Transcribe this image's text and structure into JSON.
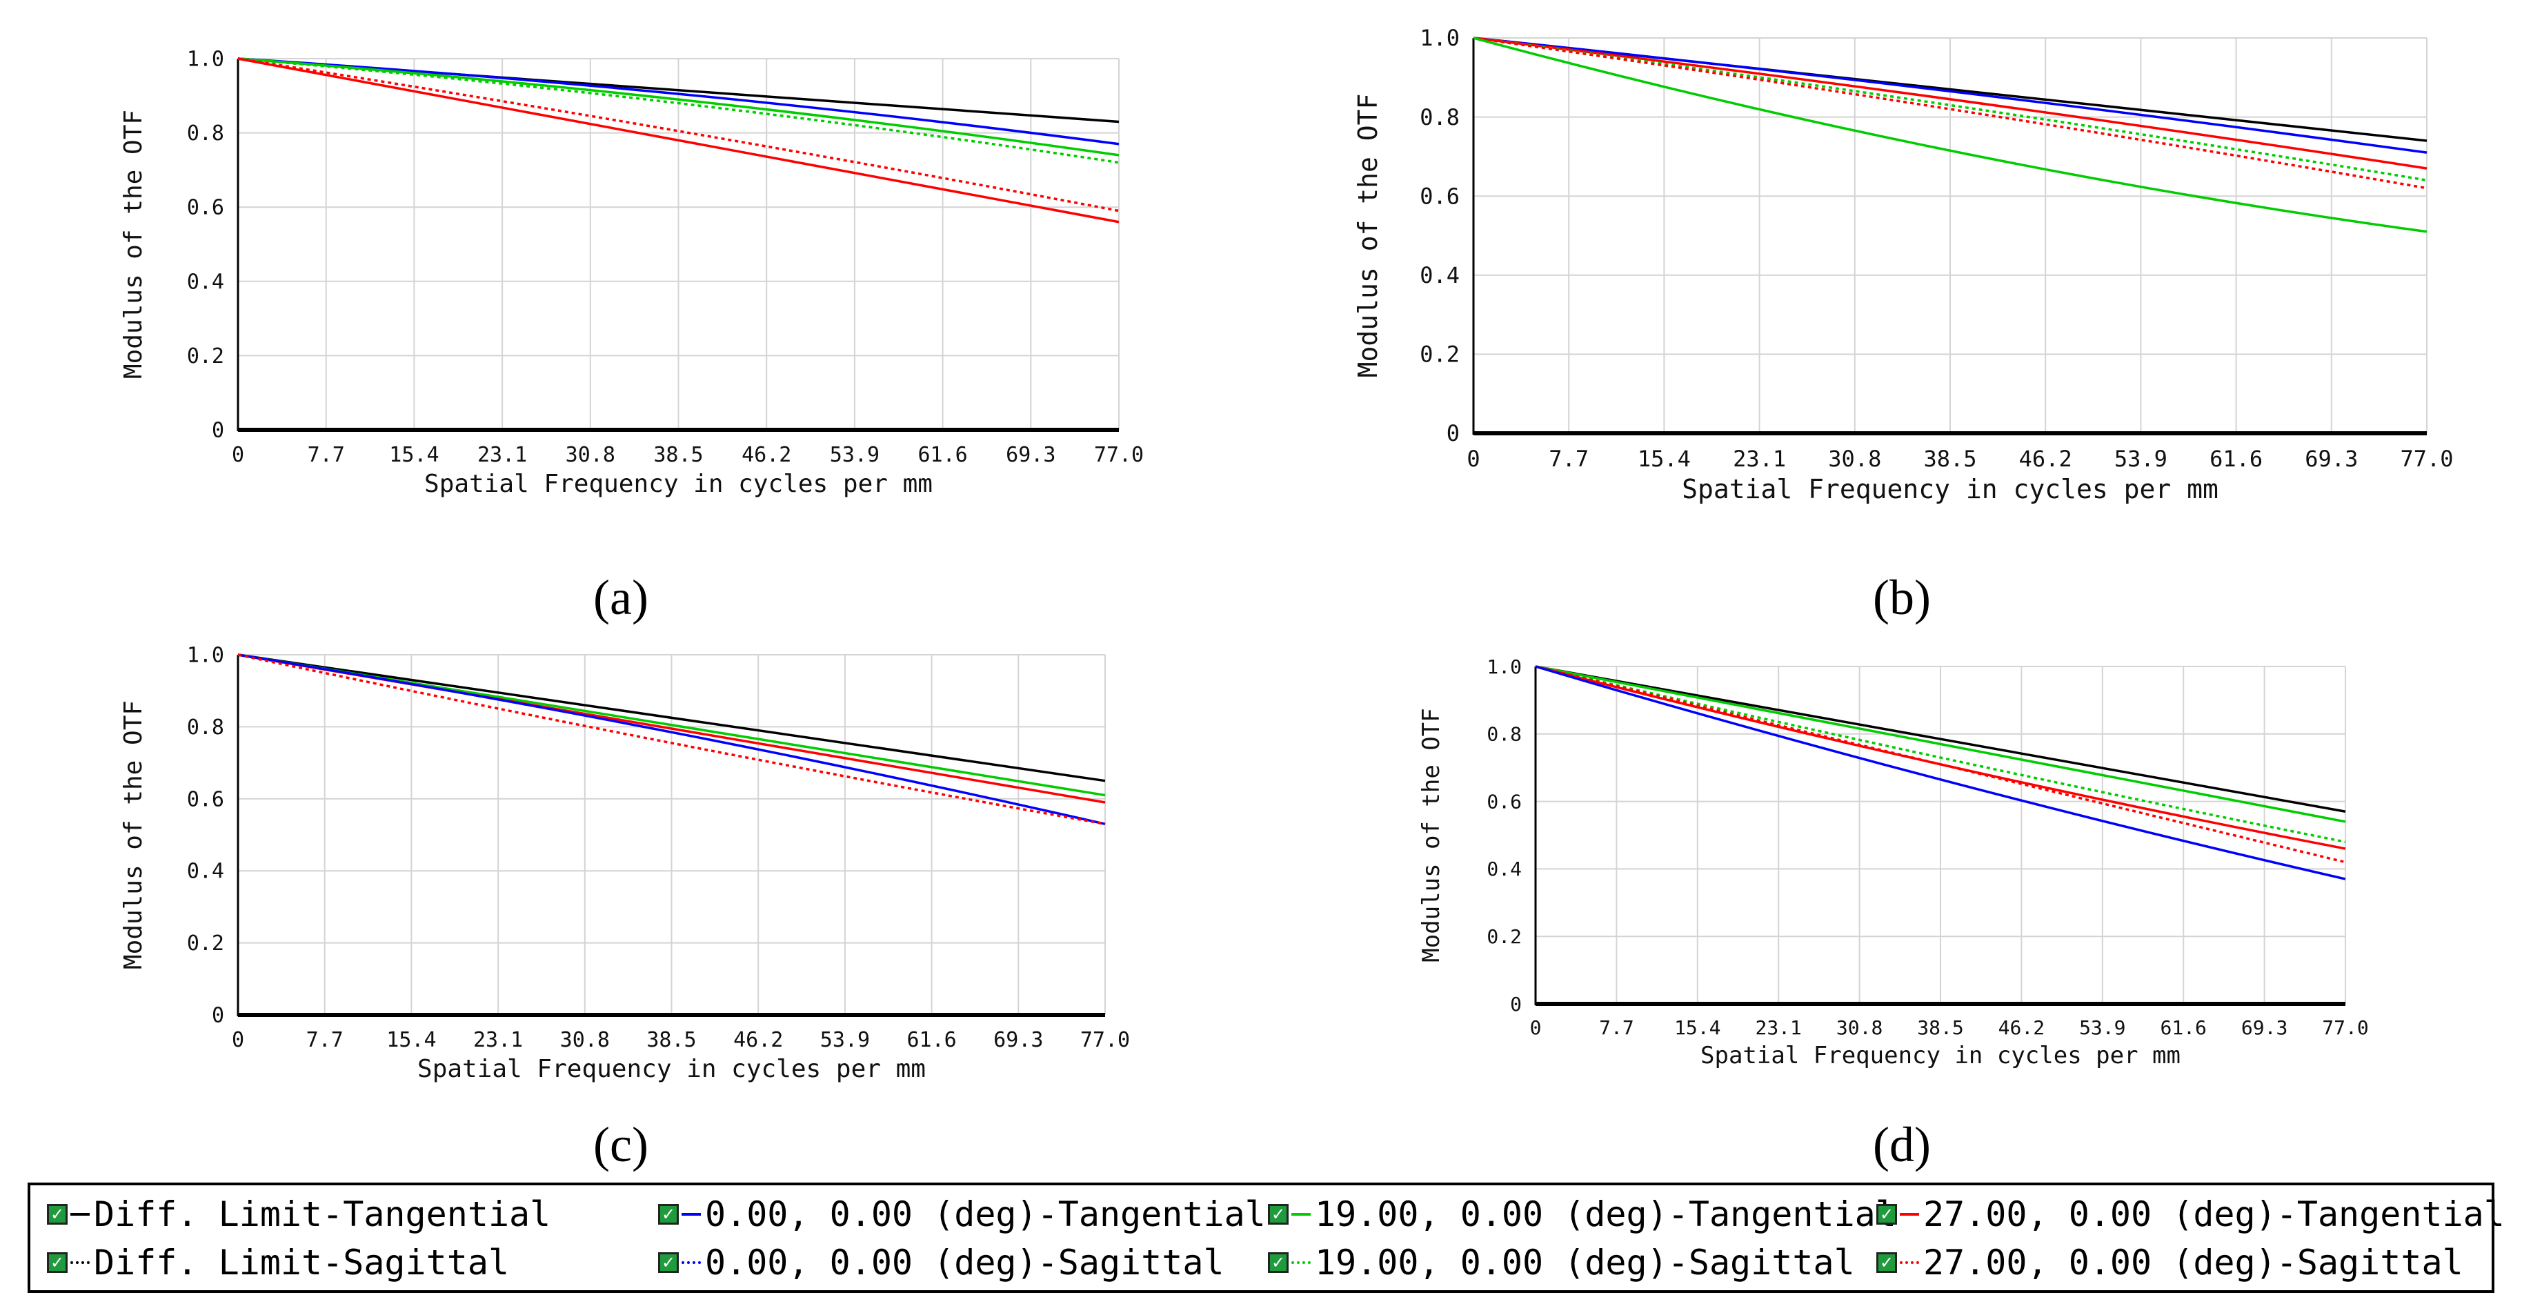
{
  "colors": {
    "diff_limit": "#000000",
    "field_0": "#0000ff",
    "field_19": "#00cc00",
    "field_27": "#ff0000"
  },
  "legend": [
    {
      "label": "Diff. Limit-Tangential",
      "color": "#000000",
      "style": "solid"
    },
    {
      "label": "Diff. Limit-Sagittal",
      "color": "#000000",
      "style": "dotted"
    },
    {
      "label": "0.00, 0.00 (deg)-Tangential",
      "color": "#0000ff",
      "style": "solid"
    },
    {
      "label": "0.00, 0.00 (deg)-Sagittal",
      "color": "#0000ff",
      "style": "dotted"
    },
    {
      "label": "19.00, 0.00 (deg)-Tangential",
      "color": "#00cc00",
      "style": "solid"
    },
    {
      "label": "19.00, 0.00 (deg)-Sagittal",
      "color": "#00cc00",
      "style": "dotted"
    },
    {
      "label": "27.00, 0.00 (deg)-Tangential",
      "color": "#ff0000",
      "style": "solid"
    },
    {
      "label": "27.00, 0.00 (deg)-Sagittal",
      "color": "#ff0000",
      "style": "dotted"
    }
  ],
  "chart_data": [
    {
      "panel": "(a)",
      "type": "line",
      "xlabel": "Spatial Frequency in cycles per mm",
      "ylabel": "Modulus of the OTF",
      "xlim": [
        0,
        77
      ],
      "ylim": [
        0,
        1
      ],
      "x_ticks": [
        "0",
        "7.7",
        "15.4",
        "23.1",
        "30.8",
        "38.5",
        "46.2",
        "53.9",
        "61.6",
        "69.3",
        "77.0"
      ],
      "y_ticks": [
        "0",
        "0.2",
        "0.4",
        "0.6",
        "0.8",
        "1.0"
      ],
      "x": [
        0,
        77
      ],
      "series": [
        {
          "name": "Diff. Limit-Tangential",
          "color": "#000000",
          "dash": "solid",
          "values": [
            1.0,
            0.83
          ],
          "sag": 0.0
        },
        {
          "name": "0.00, 0.00 (deg)-Tangential",
          "color": "#0000ff",
          "dash": "solid",
          "values": [
            1.0,
            0.77
          ],
          "sag": 0.02
        },
        {
          "name": "19.00, 0.00 (deg)-Tangential",
          "color": "#00cc00",
          "dash": "solid",
          "values": [
            1.0,
            0.74
          ],
          "sag": 0.02
        },
        {
          "name": "19.00, 0.00 (deg)-Sagittal",
          "color": "#00cc00",
          "dash": "dotted",
          "values": [
            1.0,
            0.72
          ],
          "sag": 0.02
        },
        {
          "name": "27.00, 0.00 (deg)-Sagittal",
          "color": "#ff0000",
          "dash": "dotted",
          "values": [
            1.0,
            0.59
          ],
          "sag": 0.01
        },
        {
          "name": "27.00, 0.00 (deg)-Tangential",
          "color": "#ff0000",
          "dash": "solid",
          "values": [
            1.0,
            0.56
          ],
          "sag": 0.0
        }
      ]
    },
    {
      "panel": "(b)",
      "type": "line",
      "xlabel": "Spatial Frequency in cycles per mm",
      "ylabel": "Modulus of the OTF",
      "xlim": [
        0,
        77
      ],
      "ylim": [
        0,
        1
      ],
      "x_ticks": [
        "0",
        "7.7",
        "15.4",
        "23.1",
        "30.8",
        "38.5",
        "46.2",
        "53.9",
        "61.6",
        "69.3",
        "77.0"
      ],
      "y_ticks": [
        "0",
        "0.2",
        "0.4",
        "0.6",
        "0.8",
        "1.0"
      ],
      "x": [
        0,
        77
      ],
      "series": [
        {
          "name": "Diff. Limit-Tangential",
          "color": "#000000",
          "dash": "solid",
          "values": [
            1.0,
            0.74
          ],
          "sag": 0.0
        },
        {
          "name": "0.00, 0.00 (deg)-Tangential",
          "color": "#0000ff",
          "dash": "solid",
          "values": [
            1.0,
            0.71
          ],
          "sag": 0.01
        },
        {
          "name": "27.00, 0.00 (deg)-Tangential",
          "color": "#ff0000",
          "dash": "solid",
          "values": [
            1.0,
            0.67
          ],
          "sag": 0.01
        },
        {
          "name": "19.00, 0.00 (deg)-Sagittal",
          "color": "#00cc00",
          "dash": "dotted",
          "values": [
            1.0,
            0.64
          ],
          "sag": 0.01
        },
        {
          "name": "27.00, 0.00 (deg)-Sagittal",
          "color": "#ff0000",
          "dash": "dotted",
          "values": [
            1.0,
            0.62
          ],
          "sag": 0.01
        },
        {
          "name": "19.00, 0.00 (deg)-Tangential",
          "color": "#00cc00",
          "dash": "solid",
          "values": [
            1.0,
            0.51
          ],
          "sag": -0.04
        }
      ]
    },
    {
      "panel": "(c)",
      "type": "line",
      "xlabel": "Spatial Frequency in cycles per mm",
      "ylabel": "Modulus of the OTF",
      "xlim": [
        0,
        77
      ],
      "ylim": [
        0,
        1
      ],
      "x_ticks": [
        "0",
        "7.7",
        "15.4",
        "23.1",
        "30.8",
        "38.5",
        "46.2",
        "53.9",
        "61.6",
        "69.3",
        "77.0"
      ],
      "y_ticks": [
        "0",
        "0.2",
        "0.4",
        "0.6",
        "0.8",
        "1.0"
      ],
      "x": [
        0,
        77
      ],
      "series": [
        {
          "name": "Diff. Limit-Tangential",
          "color": "#000000",
          "dash": "solid",
          "values": [
            1.0,
            0.65
          ],
          "sag": 0.0
        },
        {
          "name": "19.00, 0.00 (deg)-Tangential",
          "color": "#00cc00",
          "dash": "solid",
          "values": [
            1.0,
            0.61
          ],
          "sag": 0.0
        },
        {
          "name": "27.00, 0.00 (deg)-Tangential",
          "color": "#ff0000",
          "dash": "solid",
          "values": [
            1.0,
            0.59
          ],
          "sag": 0.0
        },
        {
          "name": "0.00, 0.00 (deg)-Tangential",
          "color": "#0000ff",
          "dash": "solid",
          "values": [
            1.0,
            0.53
          ],
          "sag": 0.02
        },
        {
          "name": "27.00, 0.00 (deg)-Sagittal",
          "color": "#ff0000",
          "dash": "dotted",
          "values": [
            1.0,
            0.53
          ],
          "sag": -0.01
        }
      ]
    },
    {
      "panel": "(d)",
      "type": "line",
      "xlabel": "Spatial Frequency in cycles per mm",
      "ylabel": "Modulus of the OTF",
      "xlim": [
        0,
        77
      ],
      "ylim": [
        0,
        1
      ],
      "x_ticks": [
        "0",
        "7.7",
        "15.4",
        "23.1",
        "30.8",
        "38.5",
        "46.2",
        "53.9",
        "61.6",
        "69.3",
        "77.0"
      ],
      "y_ticks": [
        "0",
        "0.2",
        "0.4",
        "0.6",
        "0.8",
        "1.0"
      ],
      "x": [
        0,
        77
      ],
      "series": [
        {
          "name": "Diff. Limit-Tangential",
          "color": "#000000",
          "dash": "solid",
          "values": [
            1.0,
            0.57
          ],
          "sag": 0.0
        },
        {
          "name": "19.00, 0.00 (deg)-Tangential",
          "color": "#00cc00",
          "dash": "solid",
          "values": [
            1.0,
            0.54
          ],
          "sag": 0.0
        },
        {
          "name": "19.00, 0.00 (deg)-Sagittal",
          "color": "#00cc00",
          "dash": "dotted",
          "values": [
            1.0,
            0.48
          ],
          "sag": -0.01
        },
        {
          "name": "27.00, 0.00 (deg)-Tangential",
          "color": "#ff0000",
          "dash": "solid",
          "values": [
            1.0,
            0.46
          ],
          "sag": -0.02
        },
        {
          "name": "27.00, 0.00 (deg)-Sagittal",
          "color": "#ff0000",
          "dash": "dotted",
          "values": [
            1.0,
            0.42
          ],
          "sag": 0.0
        },
        {
          "name": "0.00, 0.00 (deg)-Tangential",
          "color": "#0000ff",
          "dash": "solid",
          "values": [
            1.0,
            0.37
          ],
          "sag": -0.02
        }
      ]
    }
  ]
}
